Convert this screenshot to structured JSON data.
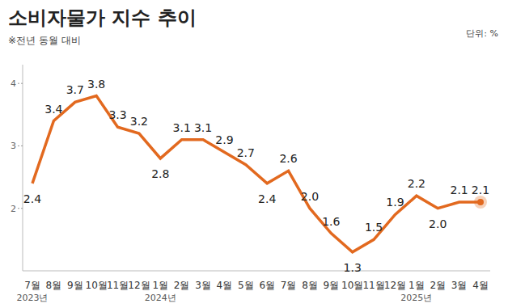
{
  "chart_data": {
    "type": "line",
    "title": "소비자물가 지수 추이",
    "subtitle": "※전년 동월 대비",
    "unit_label": "단위: %",
    "categories": [
      "7월\n2023년",
      "8월",
      "9월",
      "10월",
      "11월",
      "12월",
      "1월\n2024년",
      "2월",
      "3월",
      "4월",
      "5월",
      "6월",
      "7월",
      "8월",
      "9월",
      "10월",
      "11월",
      "12월",
      "1월\n2025년",
      "2월",
      "3월",
      "4월"
    ],
    "values": [
      2.4,
      3.4,
      3.7,
      3.8,
      3.3,
      3.2,
      2.8,
      3.1,
      3.1,
      2.9,
      2.7,
      2.4,
      2.6,
      2.0,
      1.6,
      1.3,
      1.5,
      1.9,
      2.2,
      2.0,
      2.1,
      2.1
    ],
    "value_labels": [
      "2.4",
      "3.4",
      "3.7",
      "3.8",
      "3.3",
      "3.2",
      "2.8",
      "3.1",
      "3.1",
      "2.9",
      "2.7",
      "2.4",
      "2.6",
      "2.0",
      "1.6",
      "1.3",
      "1.5",
      "1.9",
      "2.2",
      "2.0",
      "2.1",
      "2.1"
    ],
    "color": "#e2691f",
    "ylim": [
      1,
      4.3
    ],
    "yticks": [
      2,
      3,
      4
    ],
    "grid": false,
    "data_labels": true,
    "marker": "none"
  }
}
